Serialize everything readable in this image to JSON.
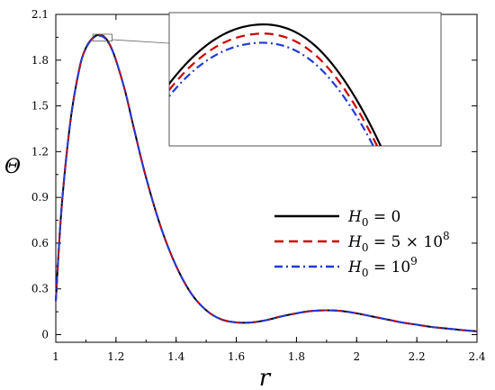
{
  "chart_data": {
    "type": "line",
    "title": "",
    "xlabel": "r",
    "ylabel": "Θ",
    "xlim": [
      1.0,
      2.4
    ],
    "ylim": [
      -0.05,
      2.1
    ],
    "xticks": [
      "1",
      "1.2",
      "1.4",
      "1.6",
      "1.8",
      "2",
      "2.2",
      "2.4"
    ],
    "yticks": [
      "0",
      "0.3",
      "0.6",
      "0.9",
      "1.2",
      "1.5",
      "1.8",
      "2.1"
    ],
    "grid": false,
    "legend_position": "right",
    "x": [
      1.0,
      1.02,
      1.05,
      1.08,
      1.1,
      1.12,
      1.14,
      1.16,
      1.18,
      1.2,
      1.23,
      1.26,
      1.3,
      1.35,
      1.4,
      1.45,
      1.5,
      1.55,
      1.6,
      1.65,
      1.7,
      1.75,
      1.8,
      1.85,
      1.9,
      1.95,
      2.0,
      2.05,
      2.1,
      2.15,
      2.2,
      2.25,
      2.3,
      2.35,
      2.4
    ],
    "series": [
      {
        "name": "H₀ = 0",
        "color": "#000000",
        "dash": "solid",
        "values": [
          0.22,
          0.85,
          1.42,
          1.76,
          1.88,
          1.94,
          1.965,
          1.955,
          1.9,
          1.8,
          1.6,
          1.35,
          1.03,
          0.7,
          0.45,
          0.27,
          0.16,
          0.1,
          0.08,
          0.08,
          0.095,
          0.12,
          0.14,
          0.155,
          0.16,
          0.155,
          0.14,
          0.12,
          0.1,
          0.08,
          0.065,
          0.05,
          0.04,
          0.03,
          0.022
        ]
      },
      {
        "name": "H₀ = 5 × 10⁸",
        "color": "#cc0000",
        "dash": "dashed",
        "values": [
          0.22,
          0.85,
          1.42,
          1.758,
          1.878,
          1.938,
          1.962,
          1.952,
          1.898,
          1.8,
          1.6,
          1.35,
          1.03,
          0.7,
          0.45,
          0.27,
          0.16,
          0.1,
          0.08,
          0.08,
          0.095,
          0.12,
          0.14,
          0.155,
          0.16,
          0.155,
          0.14,
          0.12,
          0.1,
          0.08,
          0.065,
          0.05,
          0.04,
          0.03,
          0.022
        ]
      },
      {
        "name": "H₀ = 10⁹",
        "color": "#1f3bd6",
        "dash": "dashdot",
        "values": [
          0.22,
          0.85,
          1.42,
          1.756,
          1.876,
          1.936,
          1.959,
          1.949,
          1.896,
          1.8,
          1.6,
          1.35,
          1.03,
          0.7,
          0.45,
          0.27,
          0.16,
          0.1,
          0.08,
          0.08,
          0.095,
          0.12,
          0.14,
          0.155,
          0.16,
          0.155,
          0.14,
          0.12,
          0.1,
          0.08,
          0.065,
          0.05,
          0.04,
          0.03,
          0.022
        ]
      }
    ],
    "legend": [
      {
        "sym": "H",
        "sub": "0",
        "rest": " = 0"
      },
      {
        "sym": "H",
        "sub": "0",
        "rest": " = 5 × 10",
        "sup": "8"
      },
      {
        "sym": "H",
        "sub": "0",
        "rest": " = 10",
        "sup": "9"
      }
    ],
    "inset": {
      "xlim": [
        1.123,
        1.187
      ],
      "ylim": [
        1.925,
        1.97
      ],
      "position": "top-right"
    }
  }
}
